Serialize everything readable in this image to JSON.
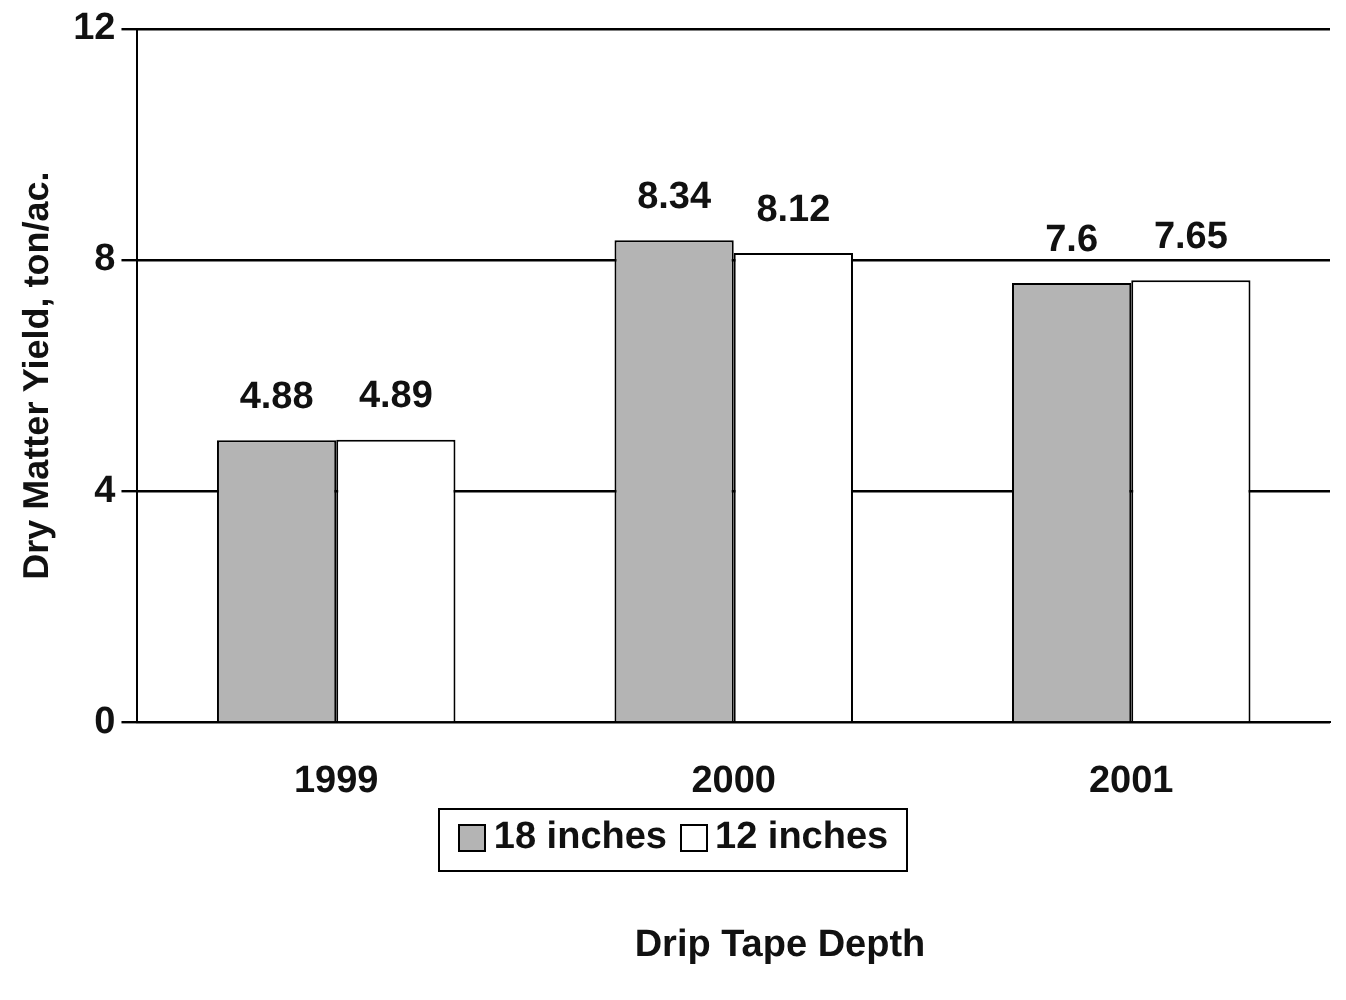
{
  "chart_data": {
    "type": "bar",
    "ylabel": "Dry Matter Yield, ton/ac.",
    "xlabel": "Drip Tape Depth",
    "categories": [
      "1999",
      "2000",
      "2001"
    ],
    "series": [
      {
        "name": "18 inches",
        "color": "#b4b4b4",
        "values": [
          4.88,
          8.34,
          7.6
        ]
      },
      {
        "name": "12 inches",
        "color": "#ffffff",
        "values": [
          4.89,
          8.12,
          7.65
        ]
      }
    ],
    "ylim": [
      0,
      12
    ],
    "yticks": [
      0,
      4,
      8,
      12
    ],
    "grid": "y",
    "legend": "bottom",
    "data_labels": true
  }
}
